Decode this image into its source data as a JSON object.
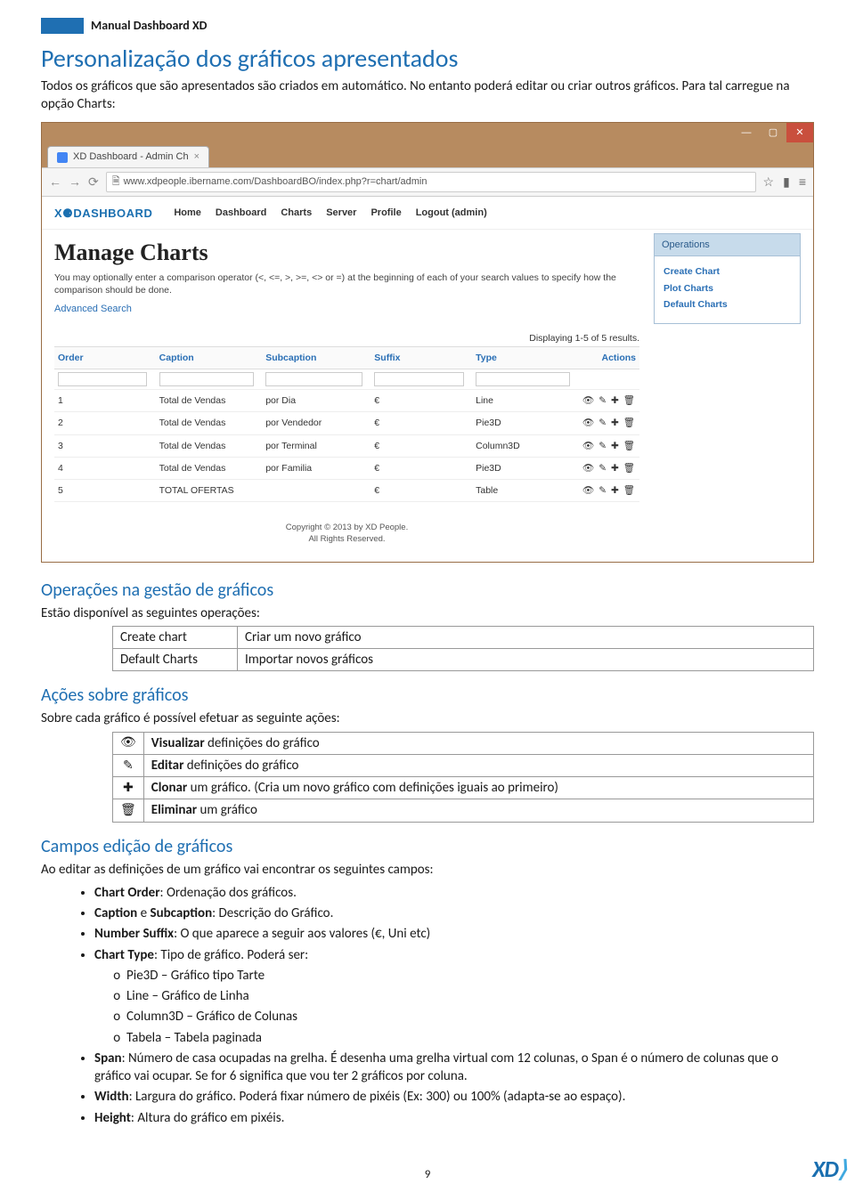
{
  "doc_header": "Manual Dashboard XD",
  "section_title": "Personalização dos gráficos apresentados",
  "intro_text": "Todos os gráficos que são apresentados são criados em automático. No entanto poderá editar ou criar outros gráficos. Para tal carregue na opção Charts:",
  "browser": {
    "tab_title": "XD Dashboard - Admin Ch",
    "url": "www.xdpeople.ibername.com/DashboardBO/index.php?r=chart/admin",
    "brand_text": "DASHBOARD",
    "menu": {
      "home": "Home",
      "dashboard": "Dashboard",
      "charts": "Charts",
      "server": "Server",
      "profile": "Profile",
      "logout": "Logout (admin)"
    },
    "page_heading": "Manage Charts",
    "help1": "You may optionally enter a comparison operator (<, <=, >, >=, <> or =) at the beginning of each of your search values to specify how the comparison should be done.",
    "adv_search": "Advanced Search",
    "results_text": "Displaying 1-5 of 5 results.",
    "columns": {
      "order": "Order",
      "caption": "Caption",
      "subcaption": "Subcaption",
      "suffix": "Suffix",
      "type": "Type",
      "actions": "Actions"
    },
    "rows": [
      {
        "order": "1",
        "caption": "Total de Vendas",
        "sub": "por Dia",
        "suffix": "€",
        "type": "Line",
        "acts": "👁 ✎ ✚ 🗑"
      },
      {
        "order": "2",
        "caption": "Total de Vendas",
        "sub": "por Vendedor",
        "suffix": "€",
        "type": "Pie3D",
        "acts": "👁 ✎ ✚ 🗑"
      },
      {
        "order": "3",
        "caption": "Total de Vendas",
        "sub": "por Terminal",
        "suffix": "€",
        "type": "Column3D",
        "acts": "👁 ✎ ✚ 🗑"
      },
      {
        "order": "4",
        "caption": "Total de Vendas",
        "sub": "por Familia",
        "suffix": "€",
        "type": "Pie3D",
        "acts": "👁 ✎ ✚ 🗑"
      },
      {
        "order": "5",
        "caption": "TOTAL OFERTAS",
        "sub": "",
        "suffix": "€",
        "type": "Table",
        "acts": "👁 ✎ ✚ 🗑"
      }
    ],
    "ops_panel": {
      "title": "Operations",
      "create": "Create Chart",
      "plot": "Plot Charts",
      "default": "Default Charts"
    },
    "copyright1": "Copyright © 2013 by XD People.",
    "copyright2": "All Rights Reserved."
  },
  "ops_heading": "Operações na gestão de gráficos",
  "ops_intro": "Estão disponível as seguintes operações:",
  "ops_rows": [
    {
      "k": "Create chart",
      "v": "Criar um novo gráfico"
    },
    {
      "k": "Default Charts",
      "v": "Importar novos gráficos"
    }
  ],
  "actions_heading": "Ações sobre gráficos",
  "actions_intro": "Sobre cada gráfico é possível efetuar as seguinte ações:",
  "action_rows": [
    {
      "icon": "👁",
      "bold": "Visualizar",
      "rest": " definições do gráfico"
    },
    {
      "icon": "✎",
      "bold": "Editar",
      "rest": " definições do gráfico"
    },
    {
      "icon": "✚",
      "bold": "Clonar",
      "rest": " um gráfico. (Cria um novo gráfico com definições iguais ao primeiro)"
    },
    {
      "icon": "🗑",
      "bold": "Eliminar",
      "rest": " um gráfico"
    }
  ],
  "fields_heading": "Campos edição de gráficos",
  "fields_intro": "Ao editar as definições de um gráfico vai encontrar os seguintes campos:",
  "fields": {
    "f1_b": "Chart Order",
    "f1_r": ": Ordenação dos gráficos.",
    "f2_b1": "Caption",
    "f2_mid": " e ",
    "f2_b2": "Subcaption",
    "f2_r": ": Descrição do Gráfico.",
    "f3_b": "Number Suffix",
    "f3_r": ": O que aparece a seguir aos valores (€, Uni etc)",
    "f4_b": "Chart Type",
    "f4_r": ": Tipo de gráfico. Poderá ser:",
    "sub1": "Pie3D – Gráfico tipo Tarte",
    "sub2": "Line – Gráfico de Linha",
    "sub3": "Column3D – Gráfico de Colunas",
    "sub4": "Tabela – Tabela paginada",
    "f5_b": "Span",
    "f5_r": ": Número de casa ocupadas na grelha. É desenha uma grelha virtual com 12 colunas, o Span é o número de colunas que o gráfico vai ocupar. Se for 6 significa que vou ter 2 gráficos por coluna.",
    "f6_b": "Width",
    "f6_r": ": Largura do gráfico. Poderá fixar número de pixéis (Ex: 300) ou 100% (adapta-se ao espaço).",
    "f7_b": "Height",
    "f7_r": ": Altura do gráfico em pixéis."
  },
  "page_number": "9",
  "footer_brand": "XD"
}
